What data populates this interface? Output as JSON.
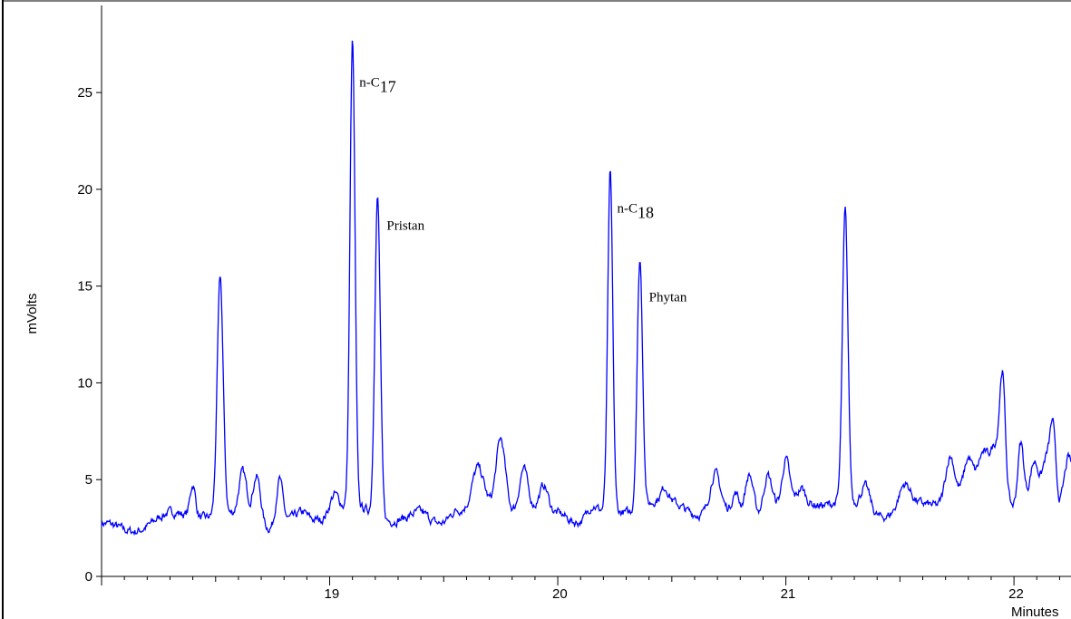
{
  "chart_data": {
    "type": "line",
    "title": "",
    "xlabel": "Minutes",
    "ylabel": "mVolts",
    "xlim": [
      18.0,
      22.25
    ],
    "ylim": [
      0,
      29.5
    ],
    "x_ticks": [
      19,
      20,
      21,
      22
    ],
    "y_ticks": [
      0,
      5,
      10,
      15,
      20,
      25
    ],
    "grid": false,
    "legend": "none",
    "line_color": "#0000ff",
    "baseline": 2.8,
    "noise_seed": 7,
    "peaks": [
      {
        "x": 18.4,
        "y": 4.5,
        "w": 0.012
      },
      {
        "x": 18.52,
        "y": 15.0,
        "w": 0.013
      },
      {
        "x": 18.62,
        "y": 5.3,
        "w": 0.018
      },
      {
        "x": 18.68,
        "y": 5.5,
        "w": 0.018
      },
      {
        "x": 18.78,
        "y": 5.1,
        "w": 0.014
      },
      {
        "x": 18.88,
        "y": 3.1,
        "w": 0.02
      },
      {
        "x": 19.02,
        "y": 3.8,
        "w": 0.02
      },
      {
        "x": 19.1,
        "y": 26.8,
        "w": 0.011
      },
      {
        "x": 19.21,
        "y": 19.3,
        "w": 0.012
      },
      {
        "x": 19.4,
        "y": 3.1,
        "w": 0.03
      },
      {
        "x": 19.55,
        "y": 3.3,
        "w": 0.03
      },
      {
        "x": 19.65,
        "y": 4.8,
        "w": 0.025
      },
      {
        "x": 19.75,
        "y": 6.5,
        "w": 0.02
      },
      {
        "x": 19.85,
        "y": 4.9,
        "w": 0.018
      },
      {
        "x": 19.94,
        "y": 4.0,
        "w": 0.018
      },
      {
        "x": 20.02,
        "y": 3.1,
        "w": 0.03
      },
      {
        "x": 20.15,
        "y": 3.3,
        "w": 0.02
      },
      {
        "x": 20.23,
        "y": 20.2,
        "w": 0.011
      },
      {
        "x": 20.36,
        "y": 15.7,
        "w": 0.012
      },
      {
        "x": 20.47,
        "y": 3.4,
        "w": 0.015
      },
      {
        "x": 20.69,
        "y": 4.8,
        "w": 0.022
      },
      {
        "x": 20.78,
        "y": 3.8,
        "w": 0.015
      },
      {
        "x": 20.84,
        "y": 5.0,
        "w": 0.018
      },
      {
        "x": 20.92,
        "y": 4.7,
        "w": 0.018
      },
      {
        "x": 21.0,
        "y": 4.9,
        "w": 0.015
      },
      {
        "x": 21.07,
        "y": 3.4,
        "w": 0.015
      },
      {
        "x": 21.26,
        "y": 17.8,
        "w": 0.012
      },
      {
        "x": 21.35,
        "y": 4.0,
        "w": 0.02
      },
      {
        "x": 21.52,
        "y": 4.0,
        "w": 0.025
      },
      {
        "x": 21.72,
        "y": 5.2,
        "w": 0.02
      },
      {
        "x": 21.8,
        "y": 4.6,
        "w": 0.02
      },
      {
        "x": 21.86,
        "y": 4.5,
        "w": 0.02
      },
      {
        "x": 21.92,
        "y": 5.8,
        "w": 0.03
      },
      {
        "x": 21.95,
        "y": 8.0,
        "w": 0.012
      },
      {
        "x": 22.03,
        "y": 6.1,
        "w": 0.013
      },
      {
        "x": 22.09,
        "y": 5.0,
        "w": 0.02
      },
      {
        "x": 22.14,
        "y": 5.0,
        "w": 0.015
      },
      {
        "x": 22.17,
        "y": 7.0,
        "w": 0.013
      },
      {
        "x": 22.24,
        "y": 5.5,
        "w": 0.02
      }
    ],
    "annotations": [
      {
        "id": "n-c17",
        "main": "n-C",
        "sub": "17",
        "x": 19.13,
        "y": 25.3
      },
      {
        "id": "pristan",
        "main": "Pristan",
        "sub": "",
        "x": 19.25,
        "y": 17.9
      },
      {
        "id": "n-c18",
        "main": "n-C",
        "sub": "18",
        "x": 20.26,
        "y": 18.8
      },
      {
        "id": "phytan",
        "main": "Phytan",
        "sub": "",
        "x": 20.4,
        "y": 14.2
      }
    ]
  }
}
